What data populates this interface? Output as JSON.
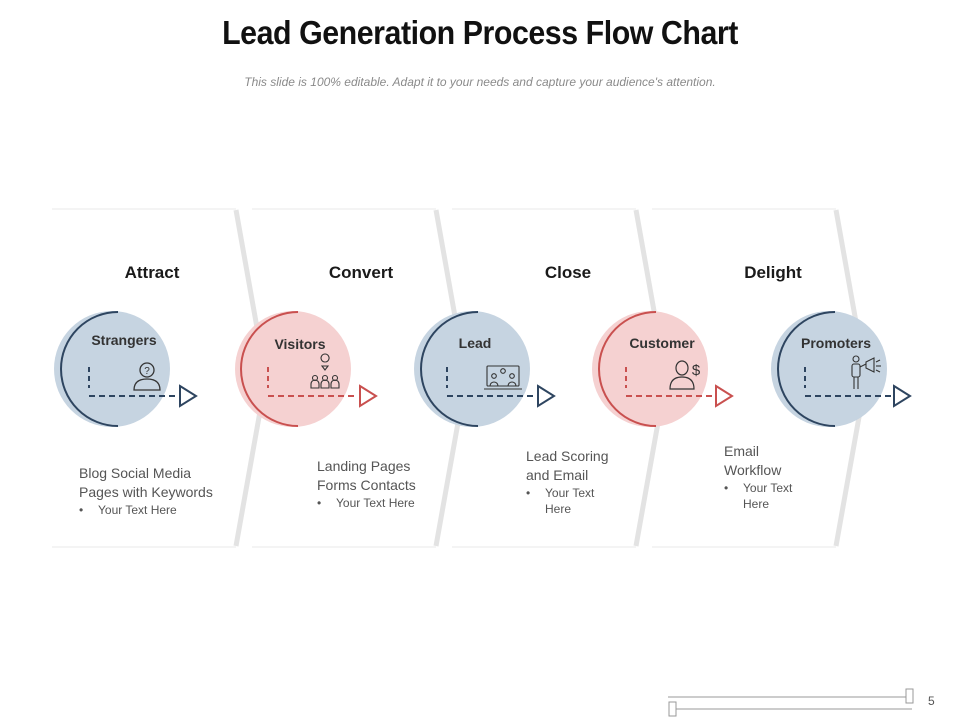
{
  "title": "Lead Generation Process Flow Chart",
  "subtitle": "This slide is 100% editable. Adapt it to your needs and capture your audience's attention.",
  "colors": {
    "blue_fill": "#c6d4e1",
    "pink_fill": "#f5d1d1",
    "blue_stroke": "#2e4560",
    "red_stroke": "#c9504f",
    "panel_edge": "#e3e3e3"
  },
  "stages": [
    {
      "heading": "Attract",
      "circle_label": "Strangers",
      "icon": "person-question-icon",
      "theme": "blue",
      "desc_lines": [
        "Blog Social Media",
        "Pages with Keywords"
      ],
      "bullets": [
        "Your Text Here"
      ]
    },
    {
      "heading": "Convert",
      "circle_label": "Visitors",
      "icon": "group-location-icon",
      "theme": "pink",
      "desc_lines": [
        "Landing Pages",
        "Forms Contacts"
      ],
      "bullets": [
        "Your Text Here"
      ]
    },
    {
      "heading": "Close",
      "circle_label": "Lead",
      "icon": "monitor-team-icon",
      "theme": "blue",
      "desc_lines": [
        "Lead Scoring",
        "and Email"
      ],
      "bullets": [
        "Your Text",
        "Here"
      ]
    },
    {
      "heading": "Delight",
      "circle_label": "Customer",
      "icon": "person-dollar-icon",
      "theme": "pink",
      "desc_lines": [
        "Email",
        "Workflow"
      ],
      "bullets": [
        "Your Text",
        "Here"
      ]
    },
    {
      "circle_label": "Promoters",
      "icon": "person-megaphone-icon",
      "theme": "blue"
    }
  ],
  "page_number": "5"
}
